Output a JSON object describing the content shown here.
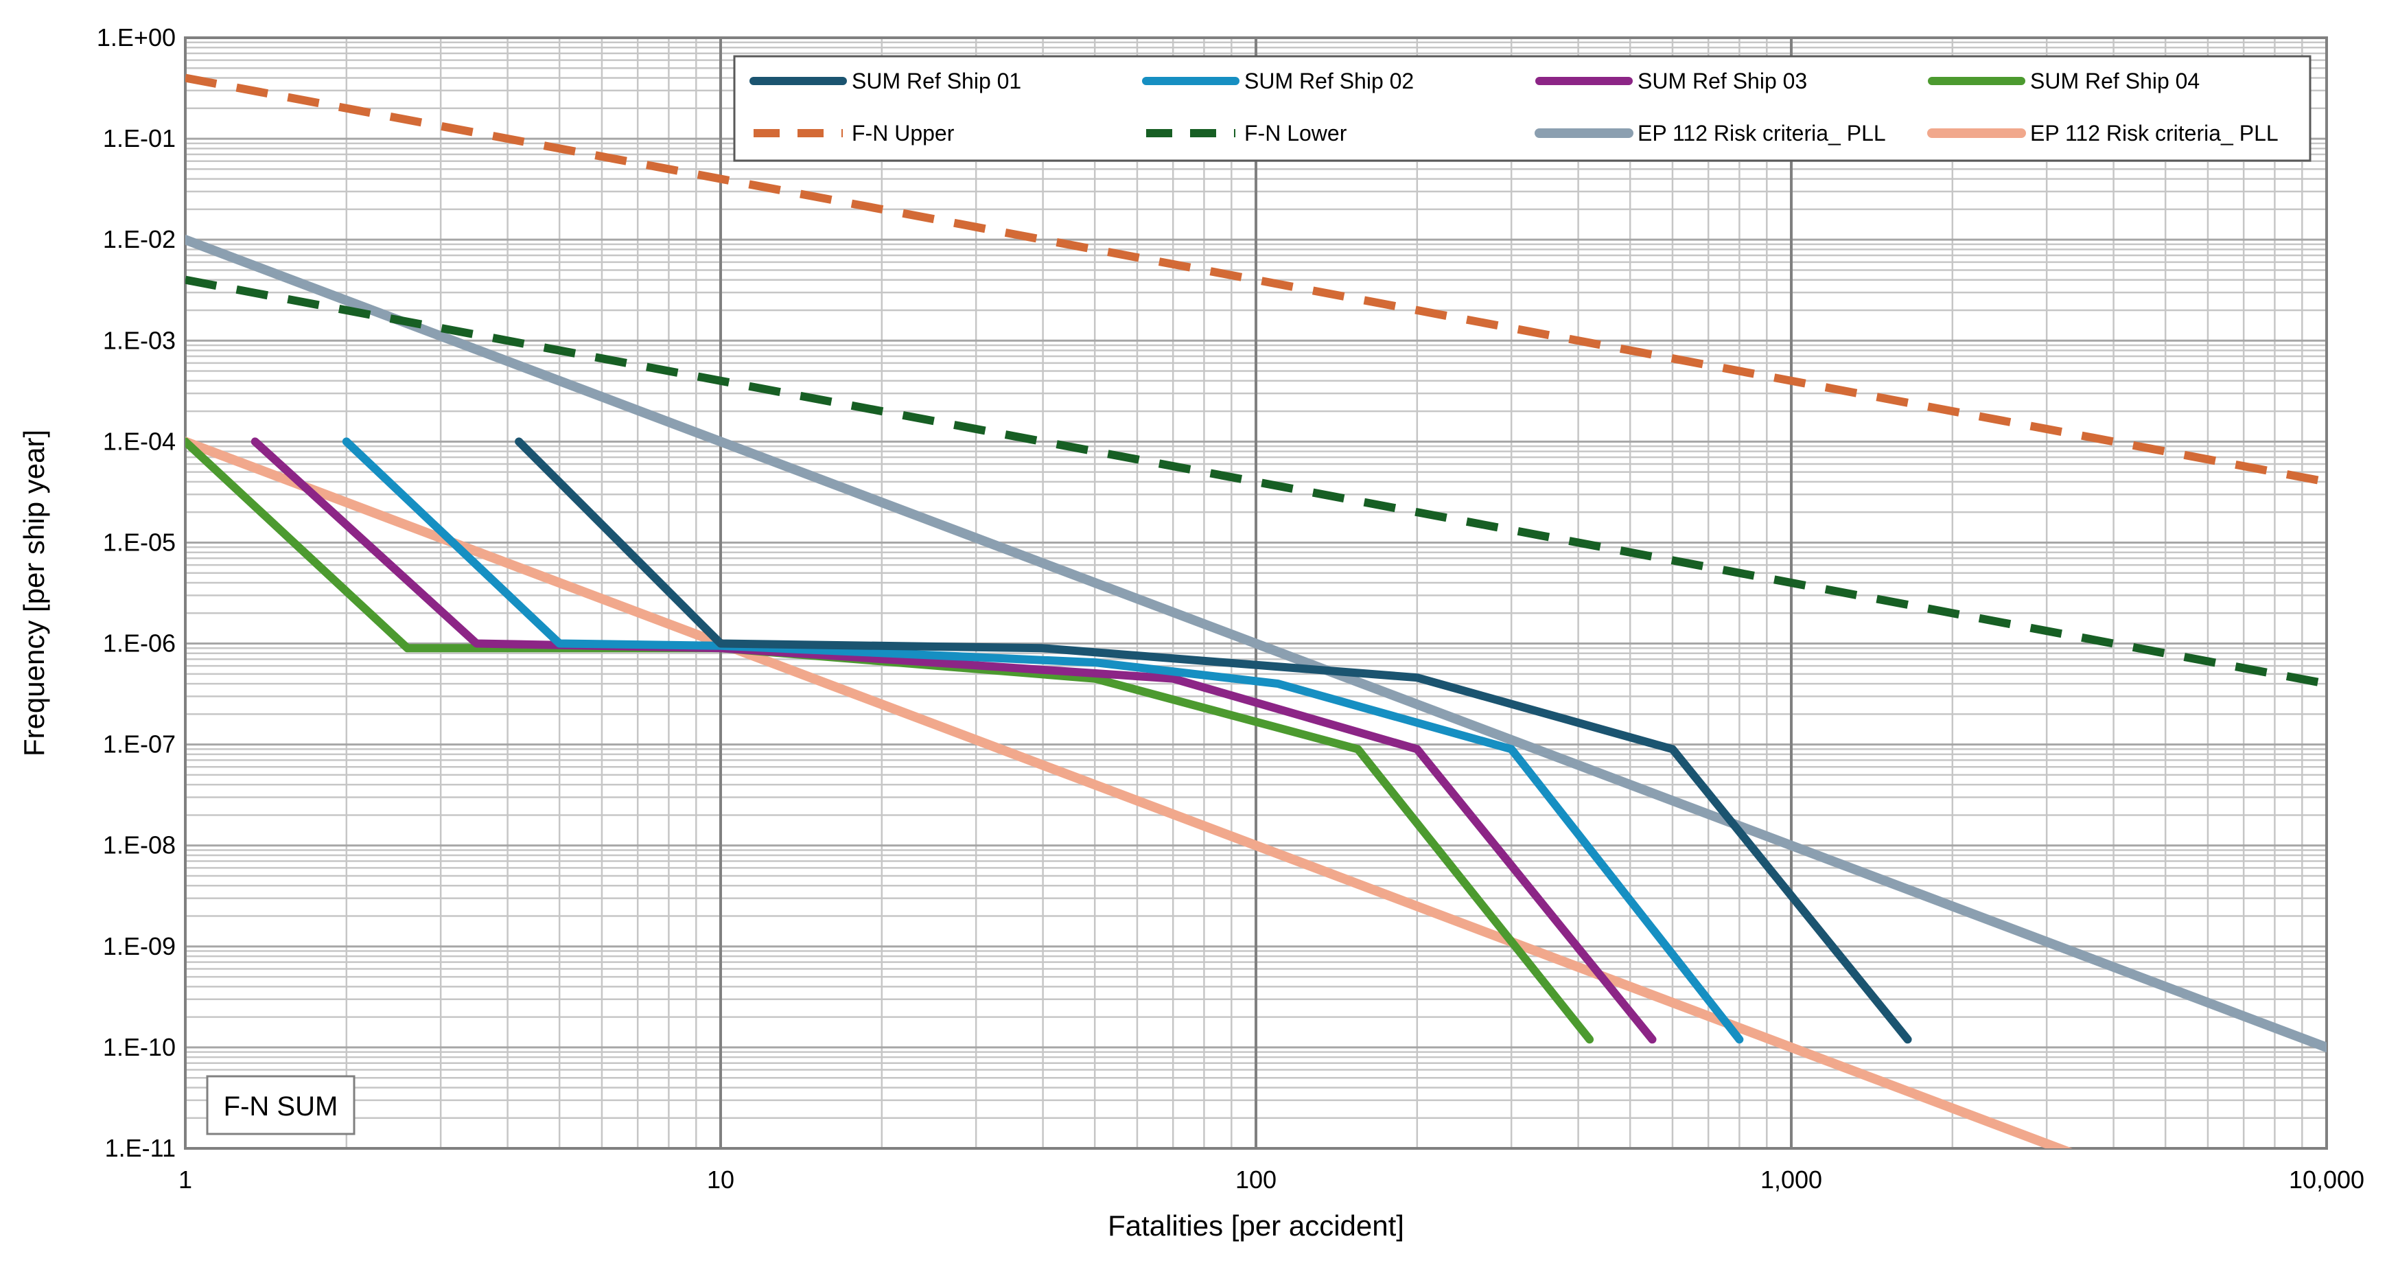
{
  "chart_data": {
    "type": "line",
    "xlabel": "Fatalities [per accident]",
    "ylabel": "Frequency [per ship year]",
    "xscale": "log",
    "yscale": "log",
    "xlim": [
      1,
      10000
    ],
    "ylim": [
      1e-11,
      1
    ],
    "grid": true,
    "legend_position": "top-right",
    "annotation": "F-N SUM",
    "x_tick_labels": [
      "1",
      "10",
      "100",
      "1,000",
      "10,000"
    ],
    "x_tick_values": [
      1,
      10,
      100,
      1000,
      10000
    ],
    "y_tick_labels": [
      "1.E-11",
      "1.E-10",
      "1.E-09",
      "1.E-08",
      "1.E-07",
      "1.E-06",
      "1.E-05",
      "1.E-04",
      "1.E-03",
      "1.E-02",
      "1.E-01",
      "1.E+00"
    ],
    "y_tick_values": [
      1e-11,
      1e-10,
      1e-09,
      1e-08,
      1e-07,
      1e-06,
      1e-05,
      0.0001,
      0.001,
      0.01,
      0.1,
      1
    ],
    "series": [
      {
        "name": "SUM Ref Ship 01",
        "color": "#1b5470",
        "dash": false,
        "width": 12,
        "x": [
          4.2,
          10,
          40,
          200,
          600,
          1650
        ],
        "y": [
          0.0001,
          1e-06,
          9e-07,
          4.6e-07,
          9e-08,
          1.2e-10
        ]
      },
      {
        "name": "SUM Ref Ship 02",
        "color": "#168fc2",
        "dash": false,
        "width": 12,
        "x": [
          2,
          5,
          10,
          50,
          110,
          300,
          800
        ],
        "y": [
          0.0001,
          1e-06,
          9.5e-07,
          6.5e-07,
          4e-07,
          9e-08,
          1.2e-10
        ]
      },
      {
        "name": "SUM Ref Ship 03",
        "color": "#8c2586",
        "dash": false,
        "width": 12,
        "x": [
          1.35,
          3.5,
          10,
          70,
          200,
          550
        ],
        "y": [
          0.0001,
          1e-06,
          9e-07,
          4.5e-07,
          9e-08,
          1.2e-10
        ]
      },
      {
        "name": "SUM Ref Ship 04",
        "color": "#4c9a2f",
        "dash": false,
        "width": 12,
        "x": [
          1,
          2.6,
          10,
          50,
          155,
          420
        ],
        "y": [
          0.0001,
          9e-07,
          9e-07,
          4.5e-07,
          9e-08,
          1.2e-10
        ]
      },
      {
        "name": "F-N Upper",
        "color": "#d36a36",
        "dash": true,
        "width": 12,
        "x": [
          1,
          10000
        ],
        "y": [
          0.4,
          4e-05
        ]
      },
      {
        "name": "F-N Lower",
        "color": "#175f24",
        "dash": true,
        "width": 12,
        "x": [
          1,
          10000
        ],
        "y": [
          0.004,
          4e-07
        ]
      },
      {
        "name": "EP 112 Risk criteria_ PLL",
        "color": "#8b9fb0",
        "dash": false,
        "width": 14,
        "x": [
          1,
          10000
        ],
        "y": [
          0.01,
          1e-10
        ]
      },
      {
        "name": "EP 112 Risk criteria_ PLL",
        "color": "#f1a88c",
        "dash": false,
        "width": 14,
        "x": [
          1,
          10000
        ],
        "y": [
          0.0001,
          1e-12
        ]
      }
    ]
  }
}
